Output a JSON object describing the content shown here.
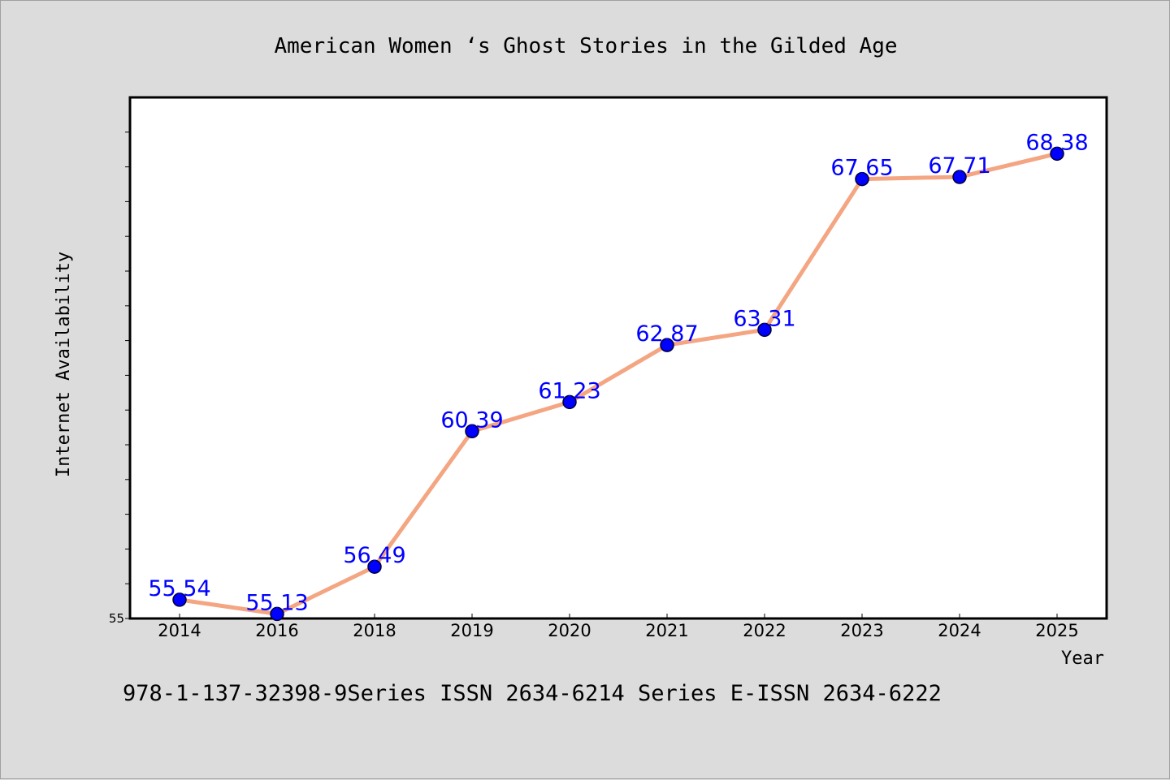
{
  "chart_data": {
    "type": "line",
    "title": "American Women ‘s Ghost Stories in the Gilded Age",
    "xlabel": "Year",
    "ylabel": "Internet Availability",
    "footer": "978-1-137-32398-9Series ISSN 2634-6214 Series E-ISSN 2634-6222",
    "categories": [
      "2014",
      "2016",
      "2018",
      "2019",
      "2020",
      "2021",
      "2022",
      "2023",
      "2024",
      "2025"
    ],
    "series": [
      {
        "values": [
          55.54,
          55.13,
          56.49,
          60.39,
          61.23,
          62.87,
          63.31,
          67.65,
          67.71,
          68.38
        ]
      }
    ],
    "data_labels": [
      "55.54",
      "55.13",
      "56.49",
      "60.39",
      "61.23",
      "62.87",
      "63.31",
      "67.65",
      "67.71",
      "68.38"
    ],
    "ylim": [
      55,
      70
    ],
    "y_tick_labels": [
      "55"
    ],
    "grid": false,
    "colors": {
      "line": "#f4a582",
      "marker": "#0000ff",
      "label": "#0000ff",
      "plot_bg": "#ffffff",
      "page_bg": "#dcdcdc"
    }
  }
}
